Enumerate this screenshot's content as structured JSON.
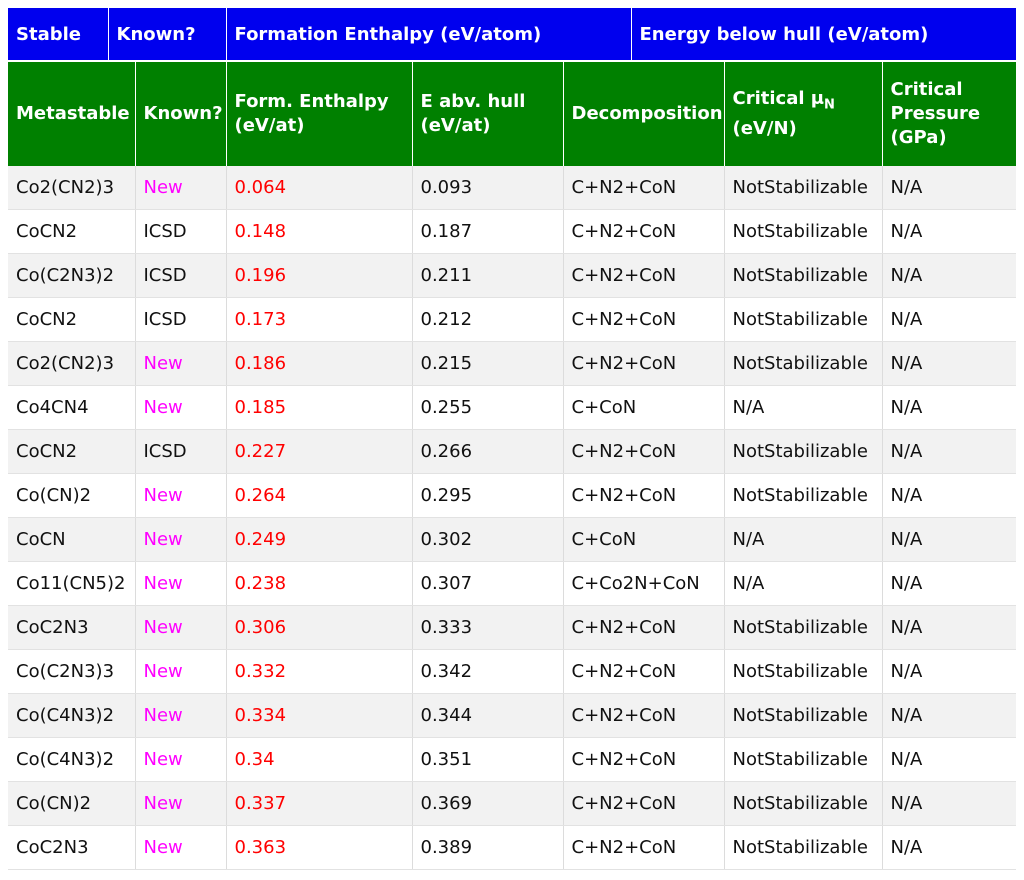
{
  "stable_header": {
    "stable": "Stable",
    "known": "Known?",
    "formation_enthalpy": "Formation Enthalpy (eV/atom)",
    "energy_below_hull": "Energy below hull (eV/atom)"
  },
  "meta_header": {
    "metastable": "Metastable",
    "known": "Known?",
    "form_enthalpy_line1": "Form. Enthalpy",
    "form_enthalpy_line2": "(eV/at)",
    "e_abv_hull_line1": "E abv. hull",
    "e_abv_hull_line2": "(eV/at)",
    "decomposition": "Decomposition",
    "critical_mu_prefix": "Critical μ",
    "critical_mu_sub": "N",
    "critical_mu_unit": "(eV/N)",
    "critical_pressure_line1": "Critical",
    "critical_pressure_line2": "Pressure",
    "critical_pressure_line3": "(GPa)"
  },
  "colors": {
    "stable_header_bg": "#0000ee",
    "meta_header_bg": "#008000",
    "enthalpy_text": "#ff0000",
    "new_text": "#ff00ff"
  },
  "rows": [
    {
      "formula": "Co2(CN2)3",
      "known": "New",
      "enthalpy": "0.064",
      "hull": "0.093",
      "decomposition": "C+N2+CoN",
      "mu": "NotStabilizable",
      "pressure": "N/A"
    },
    {
      "formula": "CoCN2",
      "known": "ICSD",
      "enthalpy": "0.148",
      "hull": "0.187",
      "decomposition": "C+N2+CoN",
      "mu": "NotStabilizable",
      "pressure": "N/A"
    },
    {
      "formula": "Co(C2N3)2",
      "known": "ICSD",
      "enthalpy": "0.196",
      "hull": "0.211",
      "decomposition": "C+N2+CoN",
      "mu": "NotStabilizable",
      "pressure": "N/A"
    },
    {
      "formula": "CoCN2",
      "known": "ICSD",
      "enthalpy": "0.173",
      "hull": "0.212",
      "decomposition": "C+N2+CoN",
      "mu": "NotStabilizable",
      "pressure": "N/A"
    },
    {
      "formula": "Co2(CN2)3",
      "known": "New",
      "enthalpy": "0.186",
      "hull": "0.215",
      "decomposition": "C+N2+CoN",
      "mu": "NotStabilizable",
      "pressure": "N/A"
    },
    {
      "formula": "Co4CN4",
      "known": "New",
      "enthalpy": "0.185",
      "hull": "0.255",
      "decomposition": "C+CoN",
      "mu": "N/A",
      "pressure": "N/A"
    },
    {
      "formula": "CoCN2",
      "known": "ICSD",
      "enthalpy": "0.227",
      "hull": "0.266",
      "decomposition": "C+N2+CoN",
      "mu": "NotStabilizable",
      "pressure": "N/A"
    },
    {
      "formula": "Co(CN)2",
      "known": "New",
      "enthalpy": "0.264",
      "hull": "0.295",
      "decomposition": "C+N2+CoN",
      "mu": "NotStabilizable",
      "pressure": "N/A"
    },
    {
      "formula": "CoCN",
      "known": "New",
      "enthalpy": "0.249",
      "hull": "0.302",
      "decomposition": "C+CoN",
      "mu": "N/A",
      "pressure": "N/A"
    },
    {
      "formula": "Co11(CN5)2",
      "known": "New",
      "enthalpy": "0.238",
      "hull": "0.307",
      "decomposition": "C+Co2N+CoN",
      "mu": "N/A",
      "pressure": "N/A"
    },
    {
      "formula": "CoC2N3",
      "known": "New",
      "enthalpy": "0.306",
      "hull": "0.333",
      "decomposition": "C+N2+CoN",
      "mu": "NotStabilizable",
      "pressure": "N/A"
    },
    {
      "formula": "Co(C2N3)3",
      "known": "New",
      "enthalpy": "0.332",
      "hull": "0.342",
      "decomposition": "C+N2+CoN",
      "mu": "NotStabilizable",
      "pressure": "N/A"
    },
    {
      "formula": "Co(C4N3)2",
      "known": "New",
      "enthalpy": "0.334",
      "hull": "0.344",
      "decomposition": "C+N2+CoN",
      "mu": "NotStabilizable",
      "pressure": "N/A"
    },
    {
      "formula": "Co(C4N3)2",
      "known": "New",
      "enthalpy": "0.34",
      "hull": "0.351",
      "decomposition": "C+N2+CoN",
      "mu": "NotStabilizable",
      "pressure": "N/A"
    },
    {
      "formula": "Co(CN)2",
      "known": "New",
      "enthalpy": "0.337",
      "hull": "0.369",
      "decomposition": "C+N2+CoN",
      "mu": "NotStabilizable",
      "pressure": "N/A"
    },
    {
      "formula": "CoC2N3",
      "known": "New",
      "enthalpy": "0.363",
      "hull": "0.389",
      "decomposition": "C+N2+CoN",
      "mu": "NotStabilizable",
      "pressure": "N/A"
    }
  ]
}
